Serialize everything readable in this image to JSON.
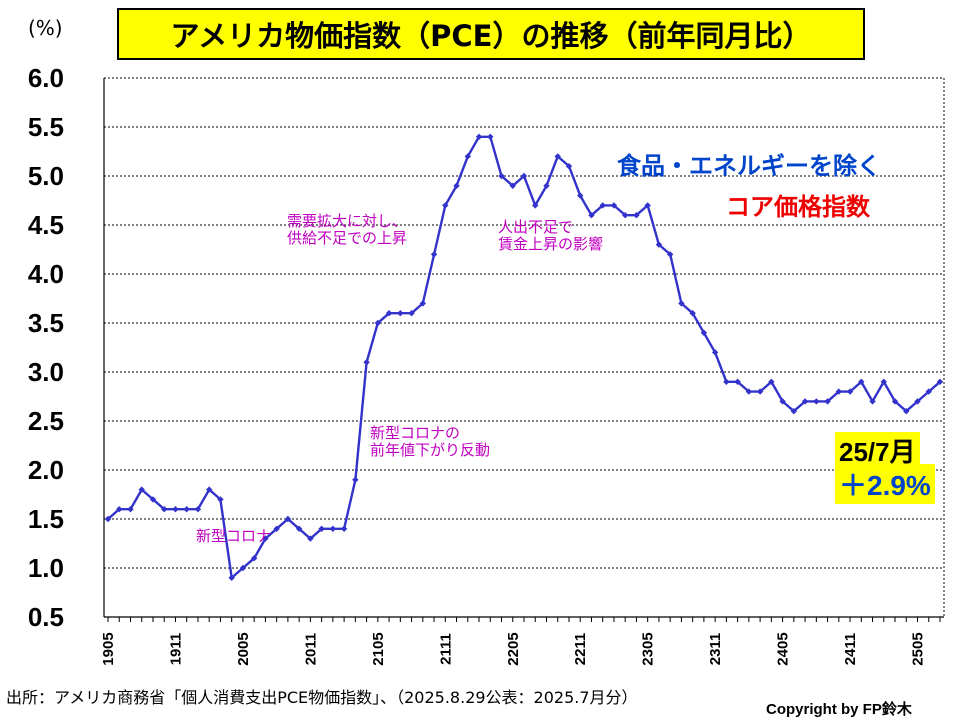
{
  "chart_data": {
    "type": "line",
    "title": "アメリカ物価指数（PCE）の推移（前年同月比）",
    "unit": "(%)",
    "ylim": [
      0.5,
      6.0
    ],
    "yticks": [
      "0.5",
      "1.0",
      "1.5",
      "2.0",
      "2.5",
      "3.0",
      "3.5",
      "4.0",
      "4.5",
      "5.0",
      "5.5",
      "6.0"
    ],
    "grid": true,
    "x_tick_labels": [
      "1905",
      "1911",
      "2005",
      "2011",
      "2105",
      "2111",
      "2205",
      "2211",
      "2305",
      "2311",
      "2405",
      "2411",
      "2505"
    ],
    "x": [
      "1905",
      "1906",
      "1907",
      "1908",
      "1909",
      "1910",
      "1911",
      "1912",
      "2001",
      "2002",
      "2003",
      "2004",
      "2005",
      "2006",
      "2007",
      "2008",
      "2009",
      "2010",
      "2011",
      "2012",
      "2101",
      "2102",
      "2103",
      "2104",
      "2105",
      "2106",
      "2107",
      "2108",
      "2109",
      "2110",
      "2111",
      "2112",
      "2201",
      "2202",
      "2203",
      "2204",
      "2205",
      "2206",
      "2207",
      "2208",
      "2209",
      "2210",
      "2211",
      "2212",
      "2301",
      "2302",
      "2303",
      "2304",
      "2305",
      "2306",
      "2307",
      "2308",
      "2309",
      "2310",
      "2311",
      "2312",
      "2401",
      "2402",
      "2403",
      "2404",
      "2405",
      "2406",
      "2407",
      "2408",
      "2409",
      "2410",
      "2411",
      "2412",
      "2501",
      "2502",
      "2503",
      "2504",
      "2505",
      "2506",
      "2507"
    ],
    "series": [
      {
        "name": "",
        "color": "#3333cc",
        "values": [
          1.5,
          1.6,
          1.6,
          1.8,
          1.7,
          1.6,
          1.6,
          1.6,
          1.6,
          1.8,
          1.7,
          0.9,
          1.0,
          1.1,
          1.3,
          1.4,
          1.5,
          1.4,
          1.3,
          1.4,
          1.4,
          1.4,
          1.9,
          3.1,
          3.5,
          3.6,
          3.6,
          3.6,
          3.7,
          4.2,
          4.7,
          4.9,
          5.2,
          5.4,
          5.4,
          5.0,
          4.9,
          5.0,
          4.7,
          4.9,
          5.2,
          5.1,
          4.8,
          4.6,
          4.7,
          4.7,
          4.6,
          4.6,
          4.7,
          4.3,
          4.2,
          3.7,
          3.6,
          3.4,
          3.2,
          2.9,
          2.9,
          2.8,
          2.8,
          2.9,
          2.7,
          2.6,
          2.7,
          2.7,
          2.7,
          2.8,
          2.8,
          2.9,
          2.7,
          2.9,
          2.7,
          2.6,
          2.7,
          2.8,
          2.9
        ]
      }
    ],
    "legend_lines": [
      "食品・エネルギーを除く",
      "コア価格指数"
    ],
    "legend_colors": [
      "#0044cc",
      "#ee0000"
    ],
    "annotations": [
      {
        "at": "2007",
        "lines": [
          "新型コロナ"
        ]
      },
      {
        "at": "2109",
        "lines": [
          "需要拡大に対し、",
          "供給不足での上昇"
        ]
      },
      {
        "at": "2206",
        "lines": [
          "人出不足で",
          "賃金上昇の影響"
        ]
      },
      {
        "at": "2104",
        "lines": [
          "新型コロナの",
          "前年値下がり反動"
        ]
      }
    ],
    "latest": {
      "period": "25/7月",
      "value": "＋2.9%",
      "value_color": "#0044cc"
    }
  },
  "source": "出所：アメリカ商務省「個人消費支出PCE物価指数」、（2025.8.29公表：2025.7月分）",
  "copyright": "Copyright by FP鈴木"
}
